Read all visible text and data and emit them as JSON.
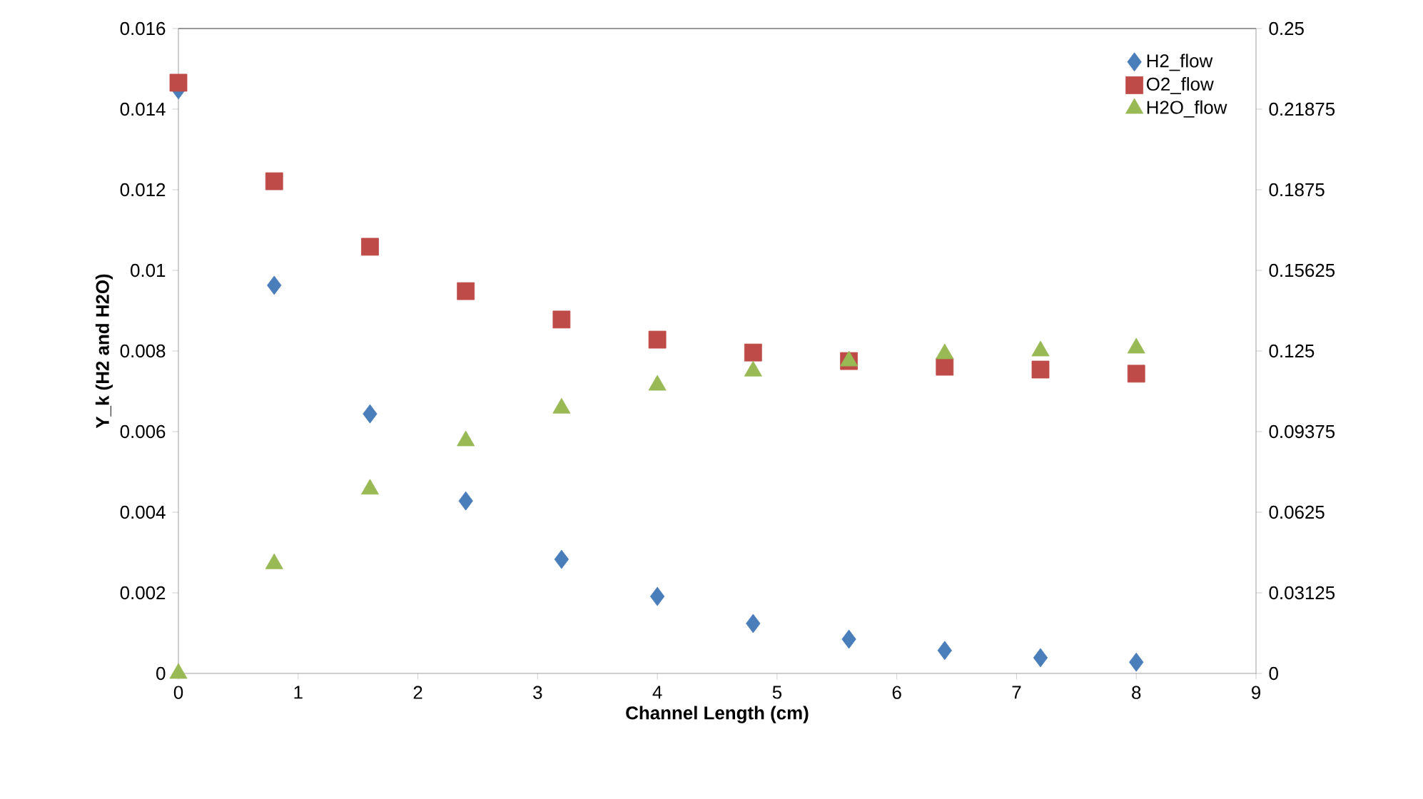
{
  "chart_data": {
    "type": "scatter",
    "xlabel": "Channel Length (cm)",
    "ylabel": "Y_k  (H2  and H2O)",
    "x": [
      0,
      0.8,
      1.6,
      2.4,
      3.2,
      4.0,
      4.8,
      5.6,
      6.4,
      7.2,
      8.0
    ],
    "series": [
      {
        "name": "H2_flow",
        "color": "#4a7ebb",
        "marker": "diamond",
        "values": [
          0.01448,
          0.00963,
          0.00644,
          0.00428,
          0.00283,
          0.00191,
          0.00124,
          0.00085,
          0.00057,
          0.00039,
          0.00028
        ]
      },
      {
        "name": "O2_flow",
        "color": "#be4b48",
        "marker": "square",
        "axis": "y2",
        "values": [
          0.229,
          0.1908,
          0.1654,
          0.1482,
          0.1372,
          0.1294,
          0.1244,
          0.1211,
          0.1189,
          0.1178,
          0.1162
        ]
      },
      {
        "name": "H2O_flow",
        "color": "#98b954",
        "marker": "triangle",
        "values": [
          0,
          0.00272,
          0.00457,
          0.00577,
          0.00658,
          0.00715,
          0.0075,
          0.00775,
          0.00793,
          0.008,
          0.00807
        ]
      }
    ],
    "xlim": [
      0,
      9
    ],
    "xticks": [
      0,
      1,
      2,
      3,
      4,
      5,
      6,
      7,
      8,
      9
    ],
    "ylim": [
      0,
      0.016
    ],
    "yticks": [
      0,
      0.002,
      0.004,
      0.006,
      0.008,
      0.01,
      0.012,
      0.014,
      0.016
    ],
    "y2lim": [
      0,
      0.25
    ],
    "y2ticks": [
      0,
      0.03125,
      0.0625,
      0.09375,
      0.125,
      0.15625,
      0.1875,
      0.21875,
      0.25
    ],
    "grid": false,
    "legend": "top right"
  }
}
